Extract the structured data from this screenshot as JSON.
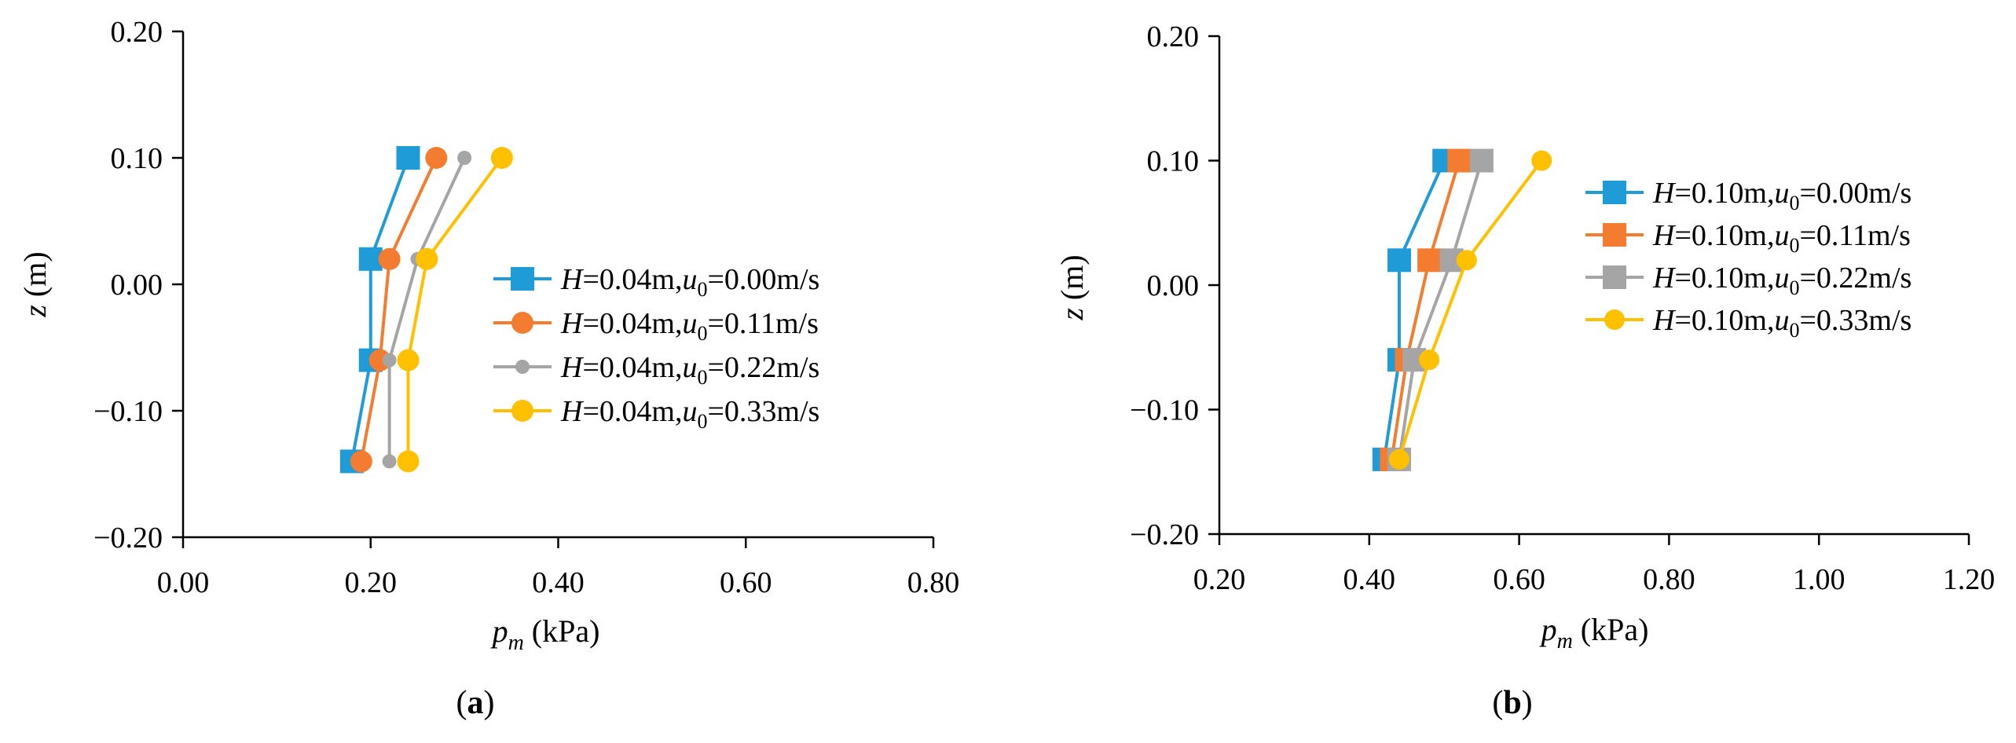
{
  "chart_data": [
    {
      "type": "line",
      "panel_label": "a",
      "xlabel": {
        "var": "p",
        "sub": "m",
        "unit": " (kPa)"
      },
      "ylabel": {
        "var": "z",
        "unit": " (m)"
      },
      "xlim": [
        0.0,
        0.8
      ],
      "ylim": [
        -0.2,
        0.2
      ],
      "xticks": [
        "0.00",
        "0.20",
        "0.40",
        "0.60",
        "0.80"
      ],
      "yticks": [
        "0.20",
        "0.10",
        "0.00",
        "−0.10",
        "−0.20"
      ],
      "xtick_values": [
        0.0,
        0.2,
        0.4,
        0.6,
        0.8
      ],
      "ytick_values": [
        0.2,
        0.1,
        0.0,
        -0.1,
        -0.2
      ],
      "legend_position": "right",
      "series": [
        {
          "label": {
            "H": "0.04m",
            "u0": "0.00m/s"
          },
          "color": "#1f9bd7",
          "marker": "square",
          "marker_size": 30,
          "points": [
            [
              0.24,
              0.1
            ],
            [
              0.2,
              0.02
            ],
            [
              0.2,
              -0.06
            ],
            [
              0.18,
              -0.14
            ]
          ]
        },
        {
          "label": {
            "H": "0.04m",
            "u0": "0.11m/s"
          },
          "color": "#f47c30",
          "marker": "circle",
          "marker_size": 28,
          "points": [
            [
              0.27,
              0.1
            ],
            [
              0.22,
              0.02
            ],
            [
              0.21,
              -0.06
            ],
            [
              0.19,
              -0.14
            ]
          ]
        },
        {
          "label": {
            "H": "0.04m",
            "u0": "0.22m/s"
          },
          "color": "#a5a5a5",
          "marker": "circle",
          "marker_size": 18,
          "points": [
            [
              0.3,
              0.1
            ],
            [
              0.25,
              0.02
            ],
            [
              0.22,
              -0.06
            ],
            [
              0.22,
              -0.14
            ]
          ]
        },
        {
          "label": {
            "H": "0.04m",
            "u0": "0.33m/s"
          },
          "color": "#ffc000",
          "marker": "circle",
          "marker_size": 28,
          "points": [
            [
              0.34,
              0.1
            ],
            [
              0.26,
              0.02
            ],
            [
              0.24,
              -0.06
            ],
            [
              0.24,
              -0.14
            ]
          ]
        }
      ]
    },
    {
      "type": "line",
      "panel_label": "b",
      "xlabel": {
        "var": "p",
        "sub": "m",
        "unit": " (kPa)"
      },
      "ylabel": {
        "var": "z",
        "unit": " (m)"
      },
      "xlim": [
        0.2,
        1.2
      ],
      "ylim": [
        -0.2,
        0.2
      ],
      "xticks": [
        "0.20",
        "0.40",
        "0.60",
        "0.80",
        "1.00",
        "1.20"
      ],
      "yticks": [
        "0.20",
        "0.10",
        "0.00",
        "−0.10",
        "−0.20"
      ],
      "xtick_values": [
        0.2,
        0.4,
        0.6,
        0.8,
        1.0,
        1.2
      ],
      "ytick_values": [
        0.2,
        0.1,
        0.0,
        -0.1,
        -0.2
      ],
      "legend_position": "top-right",
      "series": [
        {
          "label": {
            "H": "0.10m",
            "u0": "0.00m/s"
          },
          "color": "#1f9bd7",
          "marker": "square",
          "marker_size": 30,
          "points": [
            [
              0.5,
              0.1
            ],
            [
              0.44,
              0.02
            ],
            [
              0.44,
              -0.06
            ],
            [
              0.42,
              -0.14
            ]
          ]
        },
        {
          "label": {
            "H": "0.10m",
            "u0": "0.11m/s"
          },
          "color": "#f47c30",
          "marker": "square",
          "marker_size": 30,
          "points": [
            [
              0.52,
              0.1
            ],
            [
              0.48,
              0.02
            ],
            [
              0.45,
              -0.06
            ],
            [
              0.43,
              -0.14
            ]
          ]
        },
        {
          "label": {
            "H": "0.10m",
            "u0": "0.22m/s"
          },
          "color": "#a5a5a5",
          "marker": "square",
          "marker_size": 30,
          "points": [
            [
              0.55,
              0.1
            ],
            [
              0.51,
              0.02
            ],
            [
              0.46,
              -0.06
            ],
            [
              0.44,
              -0.14
            ]
          ]
        },
        {
          "label": {
            "H": "0.10m",
            "u0": "0.33m/s"
          },
          "color": "#ffc000",
          "marker": "circle",
          "marker_size": 26,
          "points": [
            [
              0.63,
              0.1
            ],
            [
              0.53,
              0.02
            ],
            [
              0.48,
              -0.06
            ],
            [
              0.44,
              -0.14
            ]
          ]
        }
      ]
    }
  ]
}
